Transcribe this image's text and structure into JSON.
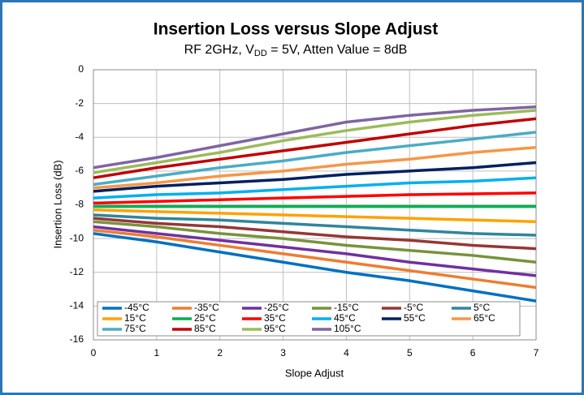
{
  "chart_data": {
    "type": "line",
    "title": "Insertion Loss versus Slope Adjust",
    "subtitle": [
      "RF 2GHz, V",
      "DD",
      " = 5V, Atten Value = 8dB"
    ],
    "xlabel": "Slope Adjust",
    "ylabel": "Insertion Loss (dB)",
    "x": [
      0,
      1,
      2,
      3,
      4,
      5,
      6,
      7
    ],
    "xlim": [
      0,
      7
    ],
    "xticks": [
      0,
      1,
      2,
      3,
      4,
      5,
      6,
      7
    ],
    "ylim": [
      -16,
      0
    ],
    "yticks": [
      -16,
      -14,
      -12,
      -10,
      -8,
      -6,
      -4,
      -2,
      0
    ],
    "grid": true,
    "legend": "bottom",
    "series": [
      {
        "name": "-45°C",
        "color": "#0070c0",
        "values": [
          -9.7,
          -10.2,
          -10.8,
          -11.4,
          -12.0,
          -12.5,
          -13.1,
          -13.7
        ]
      },
      {
        "name": "-35°C",
        "color": "#ed7d31",
        "values": [
          -9.5,
          -9.9,
          -10.4,
          -10.9,
          -11.4,
          -11.9,
          -12.4,
          -12.9
        ]
      },
      {
        "name": "-25°C",
        "color": "#7030a0",
        "values": [
          -9.3,
          -9.7,
          -10.1,
          -10.5,
          -10.9,
          -11.4,
          -11.8,
          -12.2
        ]
      },
      {
        "name": "-15°C",
        "color": "#77933c",
        "values": [
          -9.0,
          -9.3,
          -9.7,
          -10.0,
          -10.4,
          -10.7,
          -11.0,
          -11.4
        ]
      },
      {
        "name": "-5°C",
        "color": "#953735",
        "values": [
          -8.8,
          -9.1,
          -9.3,
          -9.6,
          -9.9,
          -10.1,
          -10.4,
          -10.6
        ]
      },
      {
        "name": "5°C",
        "color": "#31859c",
        "values": [
          -8.6,
          -8.8,
          -8.9,
          -9.1,
          -9.3,
          -9.5,
          -9.7,
          -9.8
        ]
      },
      {
        "name": "15°C",
        "color": "#ffa200",
        "values": [
          -8.3,
          -8.4,
          -8.5,
          -8.6,
          -8.7,
          -8.8,
          -8.9,
          -9.0
        ]
      },
      {
        "name": "25°C",
        "color": "#00b050",
        "values": [
          -8.1,
          -8.1,
          -8.1,
          -8.1,
          -8.1,
          -8.1,
          -8.1,
          -8.1
        ]
      },
      {
        "name": "35°C",
        "color": "#ff0000",
        "values": [
          -7.9,
          -7.8,
          -7.7,
          -7.6,
          -7.5,
          -7.4,
          -7.35,
          -7.3
        ]
      },
      {
        "name": "45°C",
        "color": "#00b0f0",
        "values": [
          -7.6,
          -7.4,
          -7.3,
          -7.1,
          -6.9,
          -6.7,
          -6.6,
          -6.4
        ]
      },
      {
        "name": "55°C",
        "color": "#002060",
        "values": [
          -7.2,
          -6.9,
          -6.7,
          -6.5,
          -6.2,
          -6.0,
          -5.8,
          -5.5
        ]
      },
      {
        "name": "65°C",
        "color": "#f79646",
        "values": [
          -7.0,
          -6.7,
          -6.3,
          -6.0,
          -5.6,
          -5.3,
          -4.9,
          -4.6
        ]
      },
      {
        "name": "75°C",
        "color": "#4bacc6",
        "values": [
          -6.8,
          -6.3,
          -5.8,
          -5.4,
          -4.9,
          -4.5,
          -4.1,
          -3.7
        ]
      },
      {
        "name": "85°C",
        "color": "#c00000",
        "values": [
          -6.4,
          -5.8,
          -5.3,
          -4.8,
          -4.3,
          -3.8,
          -3.3,
          -2.9
        ]
      },
      {
        "name": "95°C",
        "color": "#9bbb59",
        "values": [
          -6.1,
          -5.5,
          -4.9,
          -4.2,
          -3.6,
          -3.1,
          -2.7,
          -2.4
        ]
      },
      {
        "name": "105°C",
        "color": "#8064a2",
        "values": [
          -5.8,
          -5.2,
          -4.5,
          -3.8,
          -3.1,
          -2.7,
          -2.4,
          -2.2
        ]
      }
    ]
  }
}
